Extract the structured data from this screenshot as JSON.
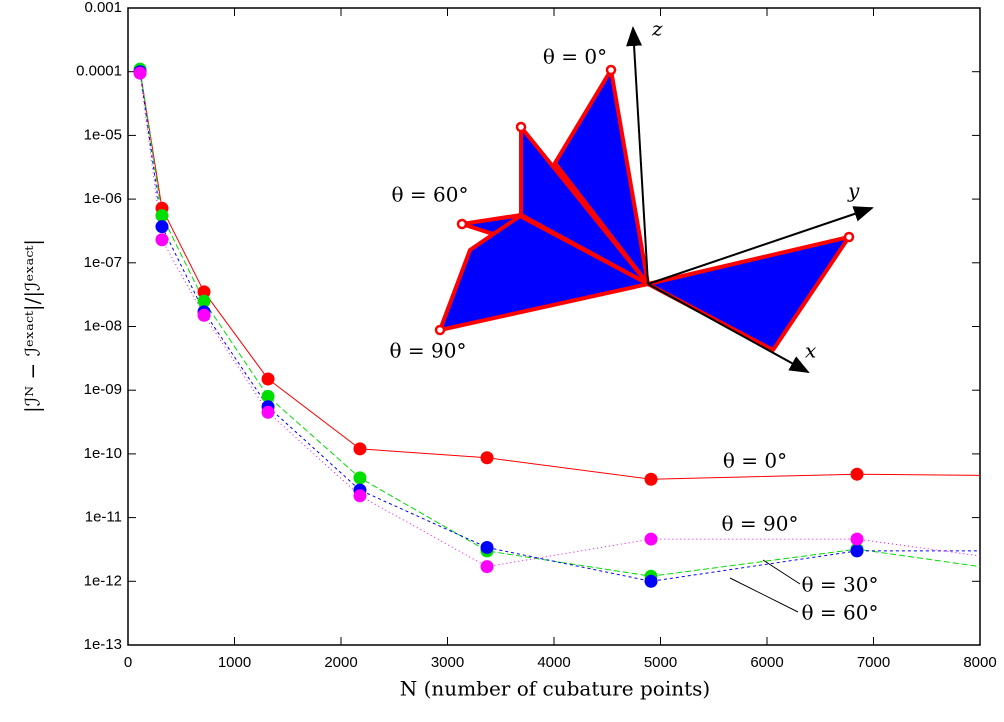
{
  "chart_data": {
    "type": "line",
    "xlabel": "N (number of cubature points)",
    "ylabel": "|ℐᴺ − ℐᵉˣᵃᶜᵗ|/|ℐᵉˣᵃᶜᵗ|",
    "x": [
      113,
      319,
      714,
      1315,
      2178,
      3371,
      4911,
      6845,
      8000
    ],
    "xlim": [
      0,
      8000
    ],
    "xticks": [
      0,
      1000,
      2000,
      3000,
      4000,
      5000,
      6000,
      7000,
      8000
    ],
    "ylim": [
      1e-13,
      0.001
    ],
    "log_y": true,
    "yticks": [
      {
        "value": 1e-13,
        "label": "1e-13"
      },
      {
        "value": 1e-12,
        "label": "1e-12"
      },
      {
        "value": 1e-11,
        "label": "1e-11"
      },
      {
        "value": 1e-10,
        "label": "1e-10"
      },
      {
        "value": 1e-09,
        "label": "1e-09"
      },
      {
        "value": 1e-08,
        "label": "1e-08"
      },
      {
        "value": 1e-07,
        "label": "1e-07"
      },
      {
        "value": 1e-06,
        "label": "1e-06"
      },
      {
        "value": 1e-05,
        "label": "1e-05"
      },
      {
        "value": 0.0001,
        "label": "0.0001"
      },
      {
        "value": 0.001,
        "label": "0.001"
      }
    ],
    "series": [
      {
        "name": "θ = 0°",
        "color": "#ff0000",
        "dash": "",
        "values": [
          0.000105,
          7.2e-07,
          3.5e-08,
          1.5e-09,
          1.2e-10,
          8.7e-11,
          4e-11,
          4.8e-11,
          4.6e-11
        ]
      },
      {
        "name": "θ = 30°",
        "color": "#00dd00",
        "dash": "6 3",
        "values": [
          0.00011,
          5.5e-07,
          2.5e-08,
          8e-10,
          4.2e-11,
          3e-12,
          1.2e-12,
          3.2e-12,
          1.7e-12
        ]
      },
      {
        "name": "θ = 60°",
        "color": "#0000ff",
        "dash": "3 3",
        "values": [
          0.0001,
          3.7e-07,
          1.7e-08,
          5.5e-10,
          2.7e-11,
          3.4e-12,
          1e-12,
          3e-12,
          3e-12
        ]
      },
      {
        "name": "θ = 90°",
        "color": "#ff00ff",
        "dash": "1 3",
        "values": [
          9.5e-05,
          2.3e-07,
          1.5e-08,
          4.5e-10,
          2.2e-11,
          1.7e-12,
          4.6e-12,
          4.6e-12,
          2.5e-12
        ]
      }
    ],
    "inset": {
      "labels": [
        "θ = 0°",
        "θ = 60°",
        "θ = 90°",
        "z",
        "y",
        "x"
      ]
    }
  }
}
